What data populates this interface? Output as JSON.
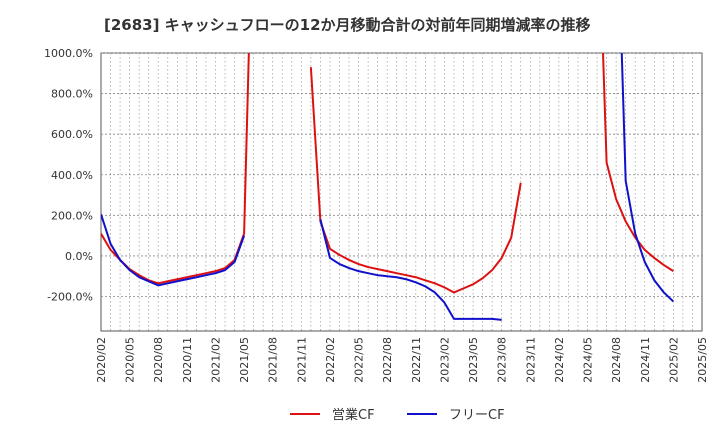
{
  "chart_data": {
    "type": "line",
    "title": "[2683]  キャッシュフローの12か月移動合計の対前年同期増減率の推移",
    "xlabel": "",
    "ylabel": "",
    "ylim": [
      -370,
      1000
    ],
    "y_ticks": [
      "1000.0%",
      "800.0%",
      "600.0%",
      "400.0%",
      "200.0%",
      "0.0%",
      "-200.0%"
    ],
    "y_tick_values": [
      1000,
      800,
      600,
      400,
      200,
      0,
      -200
    ],
    "x_tick_labels": [
      "2020/02",
      "2020/05",
      "2020/08",
      "2020/11",
      "2021/02",
      "2021/05",
      "2021/08",
      "2021/11",
      "2022/02",
      "2022/05",
      "2022/08",
      "2022/11",
      "2023/02",
      "2023/05",
      "2023/08",
      "2023/11",
      "2024/02",
      "2024/05",
      "2024/08",
      "2024/11",
      "2025/02",
      "2025/05"
    ],
    "months": [
      "2020/02",
      "2020/03",
      "2020/04",
      "2020/05",
      "2020/06",
      "2020/07",
      "2020/08",
      "2020/09",
      "2020/10",
      "2020/11",
      "2020/12",
      "2021/01",
      "2021/02",
      "2021/03",
      "2021/04",
      "2021/05",
      "2021/06",
      "2021/07",
      "2021/08",
      "2021/09",
      "2021/10",
      "2021/11",
      "2021/12",
      "2022/01",
      "2022/02",
      "2022/03",
      "2022/04",
      "2022/05",
      "2022/06",
      "2022/07",
      "2022/08",
      "2022/09",
      "2022/10",
      "2022/11",
      "2022/12",
      "2023/01",
      "2023/02",
      "2023/03",
      "2023/04",
      "2023/05",
      "2023/06",
      "2023/07",
      "2023/08",
      "2023/09",
      "2023/10",
      "2023/11",
      "2023/12",
      "2024/01",
      "2024/02",
      "2024/03",
      "2024/04",
      "2024/05",
      "2024/06",
      "2024/07",
      "2024/08",
      "2024/09",
      "2024/10",
      "2024/11",
      "2024/12",
      "2025/01",
      "2025/02",
      "2025/03",
      "2025/04",
      "2025/05"
    ],
    "series": [
      {
        "name": "営業CF",
        "color": "#dd1111",
        "values": [
          110,
          30,
          -20,
          -65,
          -95,
          -120,
          -135,
          -125,
          -115,
          -105,
          -95,
          -85,
          -75,
          -60,
          -20,
          110,
          1900,
          null,
          null,
          null,
          null,
          null,
          930,
          170,
          35,
          5,
          -20,
          -40,
          -55,
          -65,
          -75,
          -85,
          -95,
          -105,
          -120,
          -135,
          -155,
          -180,
          -160,
          -140,
          -110,
          -70,
          -10,
          90,
          360,
          null,
          null,
          null,
          null,
          null,
          null,
          null,
          1900,
          460,
          280,
          170,
          90,
          30,
          -10,
          -45,
          -75,
          null,
          null,
          null
        ]
      },
      {
        "name": "フリーCF",
        "color": "#1111cc",
        "values": [
          205,
          60,
          -20,
          -70,
          -105,
          -125,
          -145,
          -135,
          -125,
          -115,
          -105,
          -95,
          -85,
          -70,
          -30,
          100,
          null,
          null,
          null,
          null,
          null,
          null,
          null,
          180,
          -10,
          -40,
          -60,
          -75,
          -85,
          -95,
          -100,
          -105,
          -115,
          -130,
          -150,
          -180,
          -230,
          -310,
          -310,
          -310,
          -310,
          -310,
          -315,
          null,
          null,
          null,
          null,
          null,
          null,
          null,
          null,
          null,
          null,
          null,
          1900,
          370,
          110,
          -30,
          -120,
          -180,
          -225,
          null,
          null,
          null
        ]
      }
    ],
    "legend_position": "bottom-center",
    "grid": true
  }
}
